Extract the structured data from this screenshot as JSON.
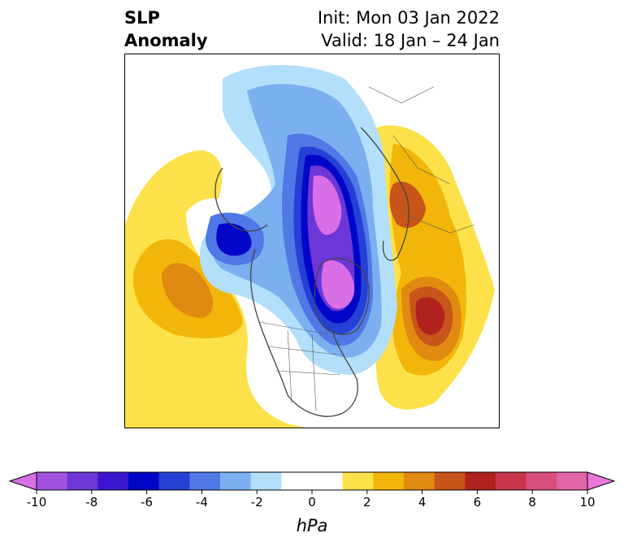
{
  "title": {
    "left_line1": "SLP",
    "left_line2": "Anomaly",
    "right_line1": "Init: Mon 03 Jan 2022",
    "right_line2": "Valid: 18 Jan – 24 Jan"
  },
  "colorbar": {
    "unit_label": "hPa",
    "tick_labels": [
      "-10",
      "-8",
      "-6",
      "-4",
      "-2",
      "0",
      "2",
      "4",
      "6",
      "8",
      "10"
    ],
    "bins": [
      "#d86fe8",
      "#a352df",
      "#6c37d6",
      "#3a16cf",
      "#0006c7",
      "#2541d5",
      "#5078e6",
      "#7ab0f0",
      "#b3dffb",
      "#ffffff",
      "#ffffff",
      "#fde14a",
      "#f2b60a",
      "#e08a12",
      "#c85519",
      "#b1221f",
      "#c7354a",
      "#d94f7c",
      "#e066a8",
      "#ea78dc"
    ]
  },
  "map": {
    "field": "SLP anomaly",
    "projection": "north polar stereographic",
    "features": [
      {
        "name": "arctic-low",
        "sign": "negative",
        "min_hpa": -10
      },
      {
        "name": "alaska-low",
        "sign": "negative",
        "min_hpa": -7
      },
      {
        "name": "north-atlantic-high",
        "sign": "positive",
        "max_hpa": 7
      },
      {
        "name": "north-pacific-high",
        "sign": "positive",
        "max_hpa": 4
      },
      {
        "name": "siberian-high",
        "sign": "positive",
        "max_hpa": 5
      }
    ]
  }
}
